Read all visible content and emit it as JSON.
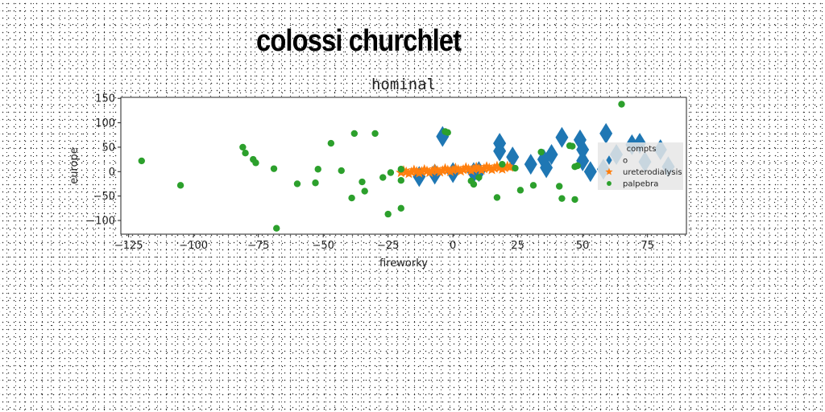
{
  "headline": "colossi churchlet",
  "chart_data": {
    "type": "scatter",
    "title": "hominal",
    "xlabel": "fireworky",
    "ylabel": "europe",
    "xlim": [
      -128,
      90
    ],
    "ylim": [
      -128,
      152
    ],
    "xticks": [
      -125,
      -100,
      -75,
      -50,
      -25,
      0,
      25,
      50,
      75
    ],
    "yticks": [
      -100,
      -50,
      0,
      50,
      100,
      150
    ],
    "grid": false,
    "legend": {
      "title": "compts",
      "placement": "right"
    },
    "series": [
      {
        "name": "o",
        "marker": "diamond",
        "color": "#1f77b4",
        "points": [
          [
            -4,
            72
          ],
          [
            18,
            58
          ],
          [
            18,
            42
          ],
          [
            23,
            30
          ],
          [
            30,
            15
          ],
          [
            35,
            25
          ],
          [
            36,
            8
          ],
          [
            38,
            35
          ],
          [
            42,
            70
          ],
          [
            49,
            65
          ],
          [
            50,
            45
          ],
          [
            50,
            22
          ],
          [
            53,
            0
          ],
          [
            58,
            5
          ],
          [
            59,
            78
          ],
          [
            63,
            35
          ],
          [
            69,
            55
          ],
          [
            72,
            58
          ],
          [
            74,
            20
          ],
          [
            80,
            45
          ],
          [
            83,
            10
          ],
          [
            -13,
            -10
          ],
          [
            -7,
            -5
          ],
          [
            0,
            -2
          ],
          [
            8,
            -2
          ],
          [
            10,
            0
          ]
        ]
      },
      {
        "name": "ureterodialysis",
        "marker": "star",
        "color": "#ff7f0e",
        "points": [
          [
            -20,
            -2
          ],
          [
            -18,
            -1
          ],
          [
            -16,
            -1
          ],
          [
            -14,
            0
          ],
          [
            -12,
            0
          ],
          [
            -10,
            1
          ],
          [
            -8,
            1
          ],
          [
            -6,
            2
          ],
          [
            -4,
            2
          ],
          [
            -2,
            3
          ],
          [
            0,
            3
          ],
          [
            2,
            4
          ],
          [
            4,
            4
          ],
          [
            6,
            5
          ],
          [
            8,
            5
          ],
          [
            10,
            6
          ],
          [
            12,
            6
          ],
          [
            14,
            7
          ],
          [
            16,
            7
          ],
          [
            18,
            8
          ],
          [
            20,
            8
          ],
          [
            22,
            9
          ],
          [
            -19,
            2
          ],
          [
            -15,
            3
          ],
          [
            -11,
            4
          ],
          [
            -7,
            5
          ],
          [
            -3,
            6
          ],
          [
            1,
            7
          ],
          [
            5,
            8
          ],
          [
            9,
            9
          ],
          [
            13,
            10
          ],
          [
            17,
            11
          ],
          [
            21,
            11
          ],
          [
            -17,
            -4
          ],
          [
            -13,
            -3
          ],
          [
            -9,
            -2
          ],
          [
            -5,
            -1
          ],
          [
            -1,
            0
          ],
          [
            3,
            1
          ],
          [
            7,
            2
          ],
          [
            11,
            3
          ],
          [
            15,
            4
          ],
          [
            19,
            5
          ]
        ]
      },
      {
        "name": "palpebra",
        "marker": "circle",
        "color": "#2ca02c",
        "points": [
          [
            -120,
            22
          ],
          [
            -105,
            -28
          ],
          [
            -81,
            50
          ],
          [
            -80,
            38
          ],
          [
            -77,
            25
          ],
          [
            -76,
            18
          ],
          [
            -69,
            6
          ],
          [
            -68,
            -116
          ],
          [
            -60,
            -25
          ],
          [
            -53,
            -23
          ],
          [
            -52,
            5
          ],
          [
            -47,
            58
          ],
          [
            -43,
            2
          ],
          [
            -39,
            -54
          ],
          [
            -38,
            78
          ],
          [
            -35,
            -21
          ],
          [
            -34,
            -40
          ],
          [
            -30,
            78
          ],
          [
            -27,
            -12
          ],
          [
            -25,
            -87
          ],
          [
            -24,
            -2
          ],
          [
            -20,
            5
          ],
          [
            -20,
            -18
          ],
          [
            -20,
            -75
          ],
          [
            -3,
            82
          ],
          [
            -2,
            80
          ],
          [
            7,
            -19
          ],
          [
            8,
            -26
          ],
          [
            10,
            -12
          ],
          [
            17,
            -53
          ],
          [
            19,
            15
          ],
          [
            24,
            7
          ],
          [
            26,
            -38
          ],
          [
            31,
            -28
          ],
          [
            34,
            40
          ],
          [
            41,
            -30
          ],
          [
            42,
            -55
          ],
          [
            45,
            53
          ],
          [
            46,
            52
          ],
          [
            47,
            10
          ],
          [
            47,
            -57
          ],
          [
            48,
            12
          ],
          [
            65,
            138
          ]
        ]
      }
    ]
  }
}
